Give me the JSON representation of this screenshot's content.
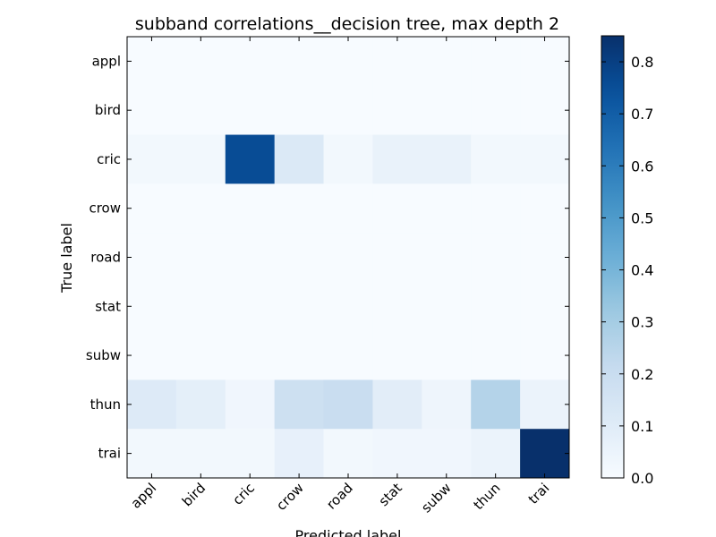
{
  "chart_data": {
    "type": "heatmap",
    "title": "subband correlations__decision tree, max depth 2",
    "xlabel": "Predicted label",
    "ylabel": "True label",
    "x_categories": [
      "appl",
      "bird",
      "cric",
      "crow",
      "road",
      "stat",
      "subw",
      "thun",
      "trai"
    ],
    "y_categories": [
      "appl",
      "bird",
      "cric",
      "crow",
      "road",
      "stat",
      "subw",
      "thun",
      "trai"
    ],
    "values": [
      [
        0,
        0,
        0,
        0,
        0,
        0,
        0,
        0,
        0
      ],
      [
        0,
        0,
        0,
        0,
        0,
        0,
        0,
        0,
        0
      ],
      [
        0.02,
        0.02,
        0.76,
        0.12,
        0.02,
        0.06,
        0.06,
        0.02,
        0.02
      ],
      [
        0,
        0,
        0,
        0,
        0,
        0,
        0,
        0,
        0
      ],
      [
        0,
        0,
        0,
        0,
        0,
        0,
        0,
        0,
        0
      ],
      [
        0,
        0,
        0,
        0,
        0,
        0,
        0,
        0,
        0
      ],
      [
        0,
        0,
        0,
        0,
        0,
        0,
        0,
        0,
        0
      ],
      [
        0.11,
        0.08,
        0.03,
        0.18,
        0.2,
        0.09,
        0.04,
        0.26,
        0.05
      ],
      [
        0.02,
        0.02,
        0.02,
        0.07,
        0.02,
        0.03,
        0.03,
        0.05,
        0.85
      ]
    ],
    "colormap": "Blues",
    "colorbar": {
      "range": [
        0,
        0.85
      ],
      "ticks": [
        0.0,
        0.1,
        0.2,
        0.3,
        0.4,
        0.5,
        0.6,
        0.7,
        0.8
      ],
      "tick_labels": [
        "0.0",
        "0.1",
        "0.2",
        "0.3",
        "0.4",
        "0.5",
        "0.6",
        "0.7",
        "0.8"
      ]
    },
    "colors": {
      "low": "#f7fbff",
      "high": "#08306b",
      "frame": "#000000",
      "background": "#ffffff"
    }
  }
}
